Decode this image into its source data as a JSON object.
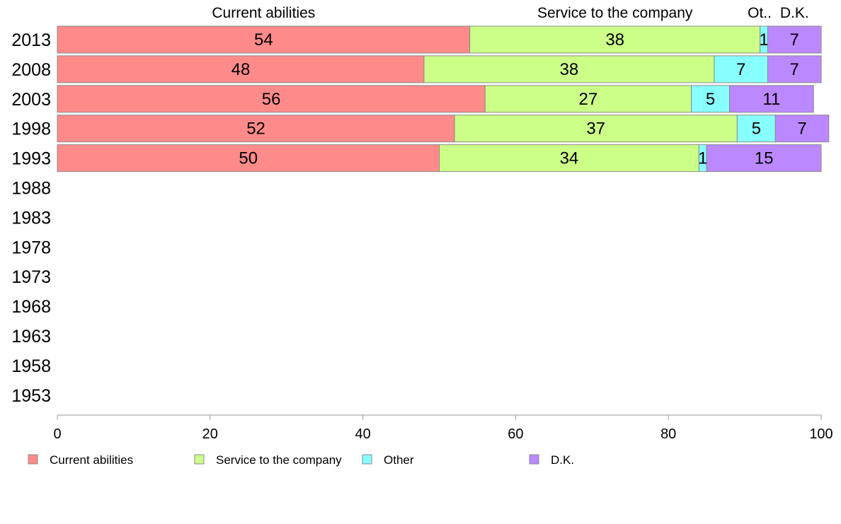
{
  "chart_data": {
    "type": "bar",
    "orientation": "horizontal",
    "stacked": true,
    "categories": [
      "2013",
      "2008",
      "2003",
      "1998",
      "1993",
      "1988",
      "1983",
      "1978",
      "1973",
      "1968",
      "1963",
      "1958",
      "1953"
    ],
    "series": [
      {
        "name": "Current abilities",
        "header": "Current abilities",
        "color": "#ff8a8a",
        "values": [
          54,
          48,
          56,
          52,
          50,
          null,
          null,
          null,
          null,
          null,
          null,
          null,
          null
        ]
      },
      {
        "name": "Service to the company",
        "header": "Service to the company",
        "color": "#ccff88",
        "values": [
          38,
          38,
          27,
          37,
          34,
          null,
          null,
          null,
          null,
          null,
          null,
          null,
          null
        ]
      },
      {
        "name": "Other",
        "header": "Ot..",
        "color": "#88ffff",
        "values": [
          1,
          7,
          5,
          5,
          1,
          null,
          null,
          null,
          null,
          null,
          null,
          null,
          null
        ]
      },
      {
        "name": "D.K.",
        "header": "D.K.",
        "color": "#bb88ff",
        "values": [
          7,
          7,
          11,
          7,
          15,
          null,
          null,
          null,
          null,
          null,
          null,
          null,
          null
        ]
      }
    ],
    "xlim": [
      0,
      100
    ],
    "xticks": [
      0,
      20,
      40,
      60,
      80,
      100
    ],
    "title": "",
    "xlabel": "",
    "ylabel": "",
    "legend_position": "bottom",
    "grid": false
  }
}
